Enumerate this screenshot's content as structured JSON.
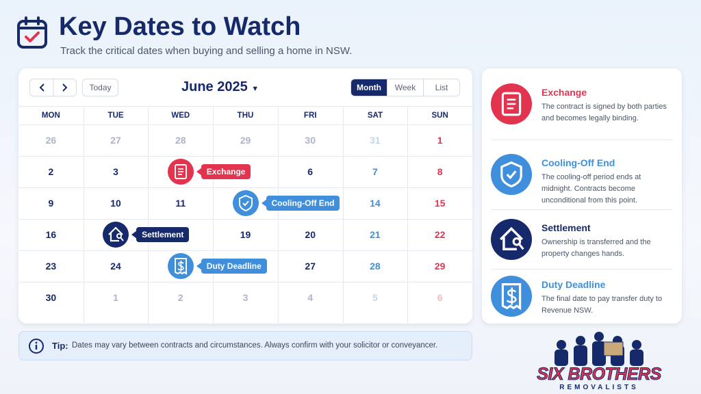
{
  "header": {
    "title": "Key Dates to Watch",
    "subtitle": "Track the critical dates when buying and selling a home in NSW."
  },
  "calendar": {
    "today": "Today",
    "month": "June 2025",
    "views": [
      "Month",
      "Week",
      "List"
    ],
    "weekdays": [
      "MON",
      "TUE",
      "WED",
      "THU",
      "FRI",
      "SAT",
      "SUN"
    ],
    "weeks": [
      [
        26,
        27,
        28,
        29,
        30,
        31,
        1
      ],
      [
        2,
        3,
        null,
        null,
        6,
        7,
        8
      ],
      [
        9,
        10,
        11,
        null,
        null,
        14,
        15
      ],
      [
        16,
        null,
        null,
        19,
        20,
        21,
        22
      ],
      [
        23,
        24,
        null,
        null,
        27,
        28,
        29
      ],
      [
        30,
        1,
        2,
        3,
        4,
        5,
        6
      ]
    ],
    "events": [
      {
        "label": "Exchange",
        "color": "#e2344f"
      },
      {
        "label": "Cooling-Off End",
        "color": "#3f8fdc"
      },
      {
        "label": "Settlement",
        "color": "#16296b"
      },
      {
        "label": "Duty Deadline",
        "color": "#3f8fdc"
      }
    ]
  },
  "tip": {
    "label": "Tip:",
    "text": "Dates may vary between contracts and circumstances. Always confirm with your solicitor or conveyancer."
  },
  "legend": {
    "items": [
      {
        "title": "Exchange",
        "description": "The contract is signed by both parties and becomes legally binding.",
        "color": "#e2344f"
      },
      {
        "title": "Cooling-Off End",
        "description": "The cooling-off period ends at midnight. Contracts become unconditional from this point.",
        "color": "#3f8fdc"
      },
      {
        "title": "Settlement",
        "description": "Ownership is transferred and the property changes hands.",
        "color": "#16296b"
      },
      {
        "title": "Duty Deadline",
        "description": "The final date to pay transfer duty to Revenue NSW.",
        "color": "#3f8fdc"
      }
    ]
  },
  "brand": {
    "name": "SIX BROTHERS",
    "tagline": "REMOVALISTS"
  }
}
